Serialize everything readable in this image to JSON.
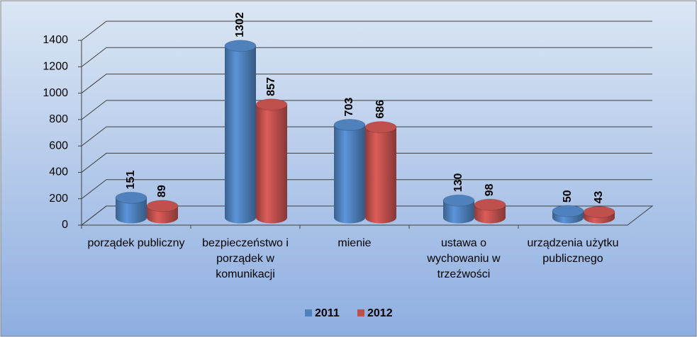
{
  "chart_data": {
    "type": "bar3d",
    "categories": [
      "porządek publiczny",
      "bezpieczeństwo i porządek w komunikacji",
      "mienie",
      "ustawa o wychowaniu w trzeźwości",
      "urządzenia użytku publicznego"
    ],
    "series": [
      {
        "name": "2011",
        "color": "#4f81bd",
        "values": [
          151,
          1302,
          703,
          130,
          50
        ]
      },
      {
        "name": "2012",
        "color": "#c0504d",
        "values": [
          89,
          857,
          686,
          98,
          43
        ]
      }
    ],
    "ylim": [
      0,
      1400
    ],
    "yticks": [
      0,
      200,
      400,
      600,
      800,
      1000,
      1200,
      1400
    ],
    "grid": true,
    "legend": "bottom"
  }
}
